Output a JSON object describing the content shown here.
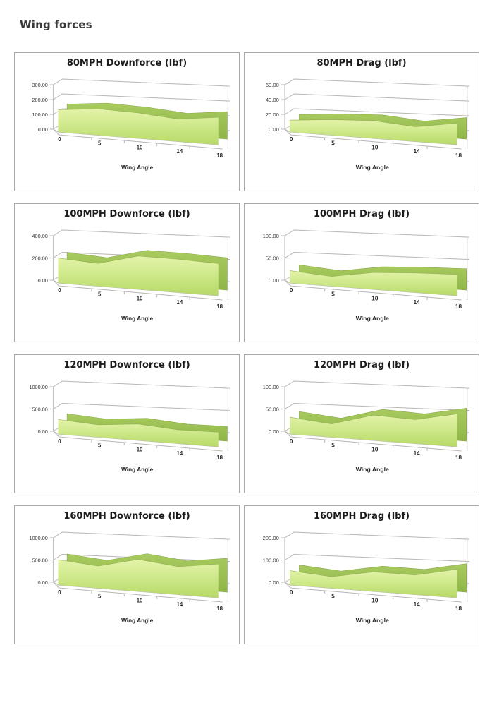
{
  "page": {
    "title": "Wing forces"
  },
  "colors": {
    "face_top": "#e4f3a9",
    "face_mid": "#cfe98c",
    "face_bottom": "#b7d967",
    "side_top": "#a9cb60",
    "side_bottom": "#8fb548",
    "edge_stroke": "#8aa84c",
    "gridline": "#b8b5b2",
    "panel_border": "#a9a9a9",
    "tick_text": "#3d3d3d",
    "label_text": "#262626"
  },
  "chart_data": [
    {
      "type": "area",
      "title": "80MPH Downforce (lbf)",
      "xlabel": "Wing Angle",
      "categories": [
        "0",
        "5",
        "10",
        "14",
        "18"
      ],
      "values": [
        150,
        178,
        172,
        152,
        185
      ],
      "ylim": [
        0,
        300
      ],
      "yticks": [
        "0.00",
        "100.00",
        "200.00",
        "300.00"
      ],
      "grid": true,
      "legend": "none"
    },
    {
      "type": "area",
      "title": "80MPH Drag (lbf)",
      "xlabel": "Wing Angle",
      "categories": [
        "0",
        "5",
        "10",
        "14",
        "18"
      ],
      "values": [
        16,
        21,
        24,
        20,
        29
      ],
      "ylim": [
        0,
        60
      ],
      "yticks": [
        "0.00",
        "20.00",
        "40.00",
        "60.00"
      ],
      "grid": true,
      "legend": "none"
    },
    {
      "type": "area",
      "title": "100MPH Downforce (lbf)",
      "xlabel": "Wing Angle",
      "categories": [
        "0",
        "5",
        "10",
        "14",
        "18"
      ],
      "values": [
        225,
        205,
        300,
        300,
        290
      ],
      "ylim": [
        0,
        400
      ],
      "yticks": [
        "0.00",
        "200.00",
        "400.00"
      ],
      "grid": true,
      "legend": "none"
    },
    {
      "type": "area",
      "title": "100MPH Drag (lbf)",
      "xlabel": "Wing Angle",
      "categories": [
        "0",
        "5",
        "10",
        "14",
        "18"
      ],
      "values": [
        28,
        22,
        38,
        44,
        48
      ],
      "ylim": [
        0,
        100
      ],
      "yticks": [
        "0.00",
        "50.00",
        "100.00"
      ],
      "grid": true,
      "legend": "none"
    },
    {
      "type": "area",
      "title": "120MPH Downforce (lbf)",
      "xlabel": "Wing Angle",
      "categories": [
        "0",
        "5",
        "10",
        "14",
        "18"
      ],
      "values": [
        330,
        280,
        370,
        310,
        330
      ],
      "ylim": [
        0,
        1000
      ],
      "yticks": [
        "0.00",
        "500.00",
        "1000.00"
      ],
      "grid": true,
      "legend": "none"
    },
    {
      "type": "area",
      "title": "120MPH Drag (lbf)",
      "xlabel": "Wing Angle",
      "categories": [
        "0",
        "5",
        "10",
        "14",
        "18"
      ],
      "values": [
        38,
        30,
        57,
        54,
        74
      ],
      "ylim": [
        0,
        100
      ],
      "yticks": [
        "0.00",
        "50.00",
        "100.00"
      ],
      "grid": true,
      "legend": "none"
    },
    {
      "type": "area",
      "title": "160MPH Downforce (lbf)",
      "xlabel": "Wing Angle",
      "categories": [
        "0",
        "5",
        "10",
        "14",
        "18"
      ],
      "values": [
        570,
        500,
        720,
        630,
        760
      ],
      "ylim": [
        0,
        1000
      ],
      "yticks": [
        "0.00",
        "500.00",
        "1000.00"
      ],
      "grid": true,
      "legend": "none"
    },
    {
      "type": "area",
      "title": "160MPH Drag (lbf)",
      "xlabel": "Wing Angle",
      "categories": [
        "0",
        "5",
        "10",
        "14",
        "18"
      ],
      "values": [
        65,
        52,
        88,
        88,
        128
      ],
      "ylim": [
        0,
        200
      ],
      "yticks": [
        "0.00",
        "100.00",
        "200.00"
      ],
      "grid": true,
      "legend": "none"
    }
  ]
}
